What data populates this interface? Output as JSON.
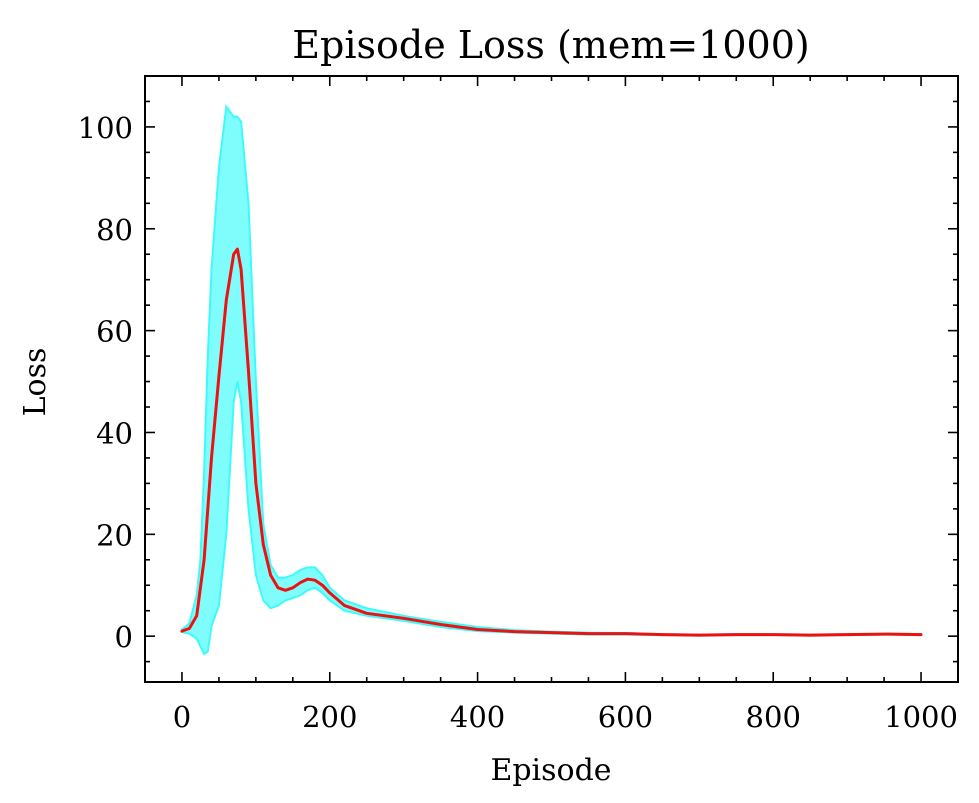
{
  "chart_data": {
    "type": "line",
    "title": "Episode Loss (mem=1000)",
    "xlabel": "Episode",
    "ylabel": "Loss",
    "xlim": [
      -50,
      1050
    ],
    "ylim": [
      -9,
      110
    ],
    "xticks": [
      0,
      200,
      400,
      600,
      800,
      1000
    ],
    "xtick_labels": [
      "0",
      "200",
      "400",
      "600",
      "800",
      "1000"
    ],
    "yticks": [
      0,
      20,
      40,
      60,
      80,
      100
    ],
    "ytick_labels": [
      "0",
      "20",
      "40",
      "60",
      "80",
      "100"
    ],
    "x_minor_step": 50,
    "y_minor_step": 5,
    "grid": false,
    "legend": "none",
    "colors": {
      "mean": "#ee1111",
      "band_fill": "#7ffdfd",
      "band_edge": "#3ffafa"
    },
    "series": [
      {
        "x": [
          0,
          10,
          20,
          30,
          40,
          50,
          60,
          70,
          75,
          80,
          90,
          100,
          110,
          120,
          130,
          140,
          150,
          160,
          170,
          180,
          190,
          200,
          220,
          250,
          300,
          350,
          400,
          450,
          500,
          550,
          600,
          650,
          700,
          750,
          800,
          850,
          900,
          950,
          1000
        ],
        "values": [
          1.0,
          1.5,
          4,
          15,
          35,
          51,
          66,
          75,
          76,
          72,
          52,
          30,
          18,
          12,
          9.5,
          9,
          9.5,
          10.5,
          11.2,
          11,
          10,
          8.5,
          6,
          4.5,
          3.5,
          2.3,
          1.3,
          0.9,
          0.7,
          0.5,
          0.5,
          0.3,
          0.2,
          0.3,
          0.3,
          0.2,
          0.3,
          0.4,
          0.3
        ]
      }
    ],
    "band": {
      "x": [
        0,
        10,
        20,
        25,
        30,
        35,
        40,
        50,
        60,
        70,
        75,
        80,
        90,
        100,
        110,
        120,
        130,
        140,
        150,
        160,
        170,
        180,
        190,
        200,
        220,
        250,
        300,
        350,
        400,
        450,
        500,
        550,
        600,
        650,
        700,
        750,
        800,
        850,
        900,
        950,
        1000
      ],
      "upper": [
        1.3,
        2.5,
        8,
        15,
        32,
        55,
        72,
        92,
        104,
        102,
        102,
        101,
        85,
        50,
        22,
        14,
        11.5,
        11.5,
        12,
        13,
        13.5,
        13.5,
        12,
        9.5,
        7,
        5.5,
        4,
        2.8,
        1.8,
        1.2,
        0.9,
        0.7,
        0.6,
        0.4,
        0.3,
        0.4,
        0.4,
        0.3,
        0.4,
        0.5,
        0.4
      ],
      "lower": [
        0.8,
        0.5,
        -0.5,
        -2,
        -3.5,
        -3,
        2,
        6,
        20,
        46,
        50,
        46,
        25,
        12,
        7,
        5.5,
        6,
        7,
        7.5,
        8,
        9,
        9.5,
        8.5,
        7,
        5,
        4,
        3,
        1.8,
        1.0,
        0.7,
        0.5,
        0.3,
        0.3,
        0.2,
        0.1,
        0.2,
        0.2,
        0.1,
        0.2,
        0.3,
        0.2
      ]
    }
  }
}
